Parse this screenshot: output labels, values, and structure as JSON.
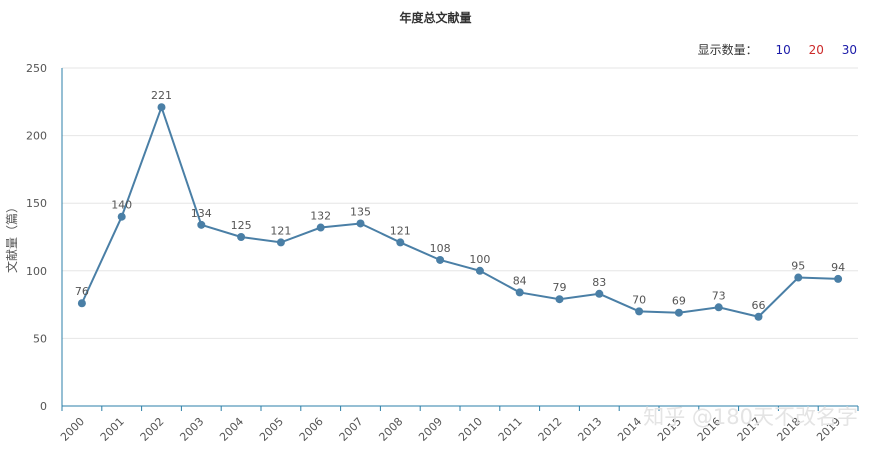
{
  "title": "年度总文献量",
  "selector": {
    "label": "显示数量：",
    "options": [
      {
        "text": "10",
        "color": "#1a1aa8"
      },
      {
        "text": "20",
        "color": "#cc2a2a"
      },
      {
        "text": "30",
        "color": "#1a1aa8"
      }
    ]
  },
  "watermark": "知乎 @180天不改名字",
  "colors": {
    "line": "#4a7fa6",
    "axis": "#2b7fa8",
    "grid": "#e6e6e6",
    "text": "#555555"
  },
  "chart_data": {
    "type": "line",
    "title": "年度总文献量",
    "xlabel": "",
    "ylabel": "文献量（篇）",
    "ylim": [
      0,
      250
    ],
    "yticks": [
      0,
      50,
      100,
      150,
      200,
      250
    ],
    "categories": [
      "2000",
      "2001",
      "2002",
      "2003",
      "2004",
      "2005",
      "2006",
      "2007",
      "2008",
      "2009",
      "2010",
      "2011",
      "2012",
      "2013",
      "2014",
      "2015",
      "2016",
      "2017",
      "2018",
      "2019"
    ],
    "values": [
      76,
      140,
      221,
      134,
      125,
      121,
      132,
      135,
      121,
      108,
      100,
      84,
      79,
      83,
      70,
      69,
      73,
      66,
      95,
      94
    ],
    "grid": true
  }
}
